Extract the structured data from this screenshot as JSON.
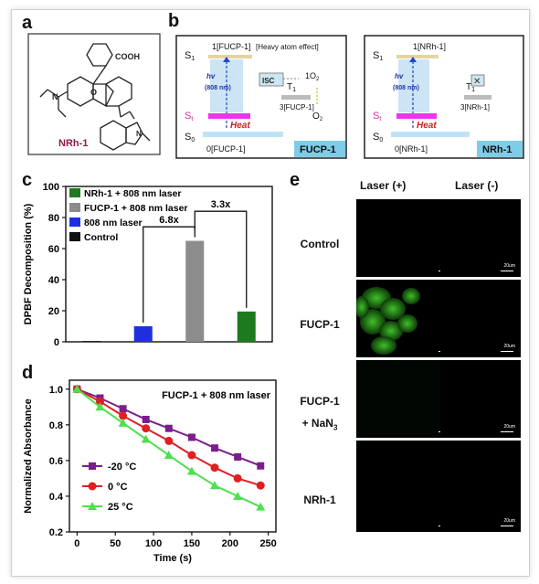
{
  "panel_labels": {
    "a": "a",
    "b": "b",
    "c": "c",
    "d": "d",
    "e": "e"
  },
  "panel_a": {
    "compound_label": "NRh-1",
    "cooh": "COOH"
  },
  "panel_b": {
    "left": {
      "s1": "S",
      "s1_sub": "1",
      "s1_state": "1[FUCP-1]",
      "heavy": "[Heavy atom effect]",
      "isc": "ISC",
      "o2_singlet": "1O",
      "o2_singlet_sub": "2",
      "t1": "T",
      "t1_sub": "1",
      "t1_state": "3[FUCP-1]",
      "hv": "hv",
      "nm": "(808 nm)",
      "st": "S",
      "st_sub": "t",
      "heat": "Heat",
      "o2": "O",
      "o2_sub": "2",
      "s0": "S",
      "s0_sub": "0",
      "s0_state": "0[FUCP-1]",
      "tag": "FUCP-1"
    },
    "right": {
      "s1": "S",
      "s1_sub": "1",
      "s1_state": "1[NRh-1]",
      "t1": "T",
      "t1_sub": "1",
      "t1_state": "3[NRh-1]",
      "hv": "hv",
      "nm": "(808 nm)",
      "st": "S",
      "st_sub": "t",
      "heat": "Heat",
      "s0": "S",
      "s0_sub": "0",
      "s0_state": "0[NRh-1]",
      "tag": "NRh-1"
    }
  },
  "chart_data": [
    {
      "type": "bar",
      "ylabel": "DPBF Decomposition (%)",
      "ylim": [
        0,
        100
      ],
      "yticks": [
        0,
        20,
        40,
        60,
        80,
        100
      ],
      "categories": [
        "Control",
        "808 nm laser",
        "FUCP-1 + 808 nm laser",
        "NRh-1 + 808 nm laser"
      ],
      "values": [
        0.5,
        10,
        65,
        19.5
      ],
      "colors": [
        "#111111",
        "#1f2fe0",
        "#8c8c8c",
        "#1e7a1e"
      ],
      "legend": [
        "NRh-1 + 808 nm laser",
        "FUCP-1 + 808 nm laser",
        "808 nm laser",
        "Control"
      ],
      "legend_colors": [
        "#1e7a1e",
        "#8c8c8c",
        "#1f2fe0",
        "#111111"
      ],
      "annotations": [
        "6.8x",
        "3.3x"
      ]
    },
    {
      "type": "line",
      "title": "FUCP-1 + 808 nm laser",
      "xlabel": "Time (s)",
      "ylabel": "Normalized Absorbance",
      "xlim": [
        -10,
        260
      ],
      "ylim": [
        0.2,
        1.05
      ],
      "xticks": [
        0,
        50,
        100,
        150,
        200,
        250
      ],
      "yticks": [
        0.2,
        0.4,
        0.6,
        0.8,
        1.0
      ],
      "x": [
        0,
        30,
        60,
        90,
        120,
        150,
        180,
        210,
        240
      ],
      "series": [
        {
          "name": "-20 °C",
          "color": "#7a1e8c",
          "marker": "square",
          "values": [
            1.0,
            0.95,
            0.89,
            0.83,
            0.78,
            0.73,
            0.67,
            0.62,
            0.57
          ]
        },
        {
          "name": "0 °C",
          "color": "#e01f1f",
          "marker": "circle",
          "values": [
            1.0,
            0.93,
            0.85,
            0.78,
            0.71,
            0.63,
            0.56,
            0.5,
            0.46
          ]
        },
        {
          "name": "25 °C",
          "color": "#4ee04e",
          "marker": "triangle",
          "values": [
            1.0,
            0.9,
            0.81,
            0.72,
            0.63,
            0.54,
            0.46,
            0.4,
            0.34
          ]
        }
      ]
    }
  ],
  "panel_e": {
    "col_headers": [
      "Laser (+)",
      "Laser (-)"
    ],
    "row_labels": [
      "Control",
      "FUCP-1",
      "FUCP-1",
      "NRh-1"
    ],
    "row3_extra": "+ NaN",
    "row3_extra_sub": "3",
    "scale_text": "20um"
  }
}
